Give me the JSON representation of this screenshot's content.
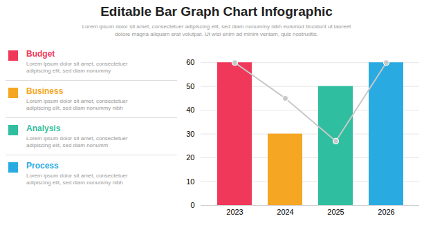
{
  "chart_data": {
    "type": "bar",
    "title": "Editable Bar Graph Chart Infographic",
    "subtitle": [
      "Lorem ipsum dolor sit amet, consectetuer adipiscing elit, sed diam nonummy nibh euismod tincidunt ut laoreet",
      "dolore magna aliquam erat volutpat. Ut wisi enim ad minim veniam, quis nostrudtis."
    ],
    "categories": [
      "2023",
      "2024",
      "2025",
      "2026"
    ],
    "values": [
      60,
      30,
      50,
      60
    ],
    "colors": [
      "#F0395A",
      "#F5A623",
      "#2FBFA0",
      "#29ABE2"
    ],
    "trend": {
      "type": "line",
      "color": "#c8c8c8",
      "marker": "circle",
      "values": [
        60,
        45,
        27,
        60
      ]
    },
    "ylim": [
      0,
      65
    ],
    "yticks": [
      0,
      10,
      20,
      30,
      40,
      50,
      60
    ],
    "grid": true,
    "legend_items": [
      {
        "name": "Budget",
        "color": "#F0395A",
        "description": [
          "Lorem ipsum dolor sit amet, consectetuer",
          "adipiscing elit, sed diam nonummy"
        ]
      },
      {
        "name": "Business",
        "color": "#F5A623",
        "description": [
          "Lorem ipsum dolor sit amet, consectetuer",
          "adipiscing elit, sed diam nonummy nibh"
        ]
      },
      {
        "name": "Analysis",
        "color": "#2FBFA0",
        "description": [
          "Lorem ipsum dolor sit amet, consectetuer",
          "adipiscing elit, sed diam nonumm"
        ]
      },
      {
        "name": "Process",
        "color": "#29ABE2",
        "description": [
          "Lorem ipsum dolor sit amet, consectetuer",
          "adipiscing elit, sed diam nonummy nibh"
        ]
      }
    ]
  }
}
